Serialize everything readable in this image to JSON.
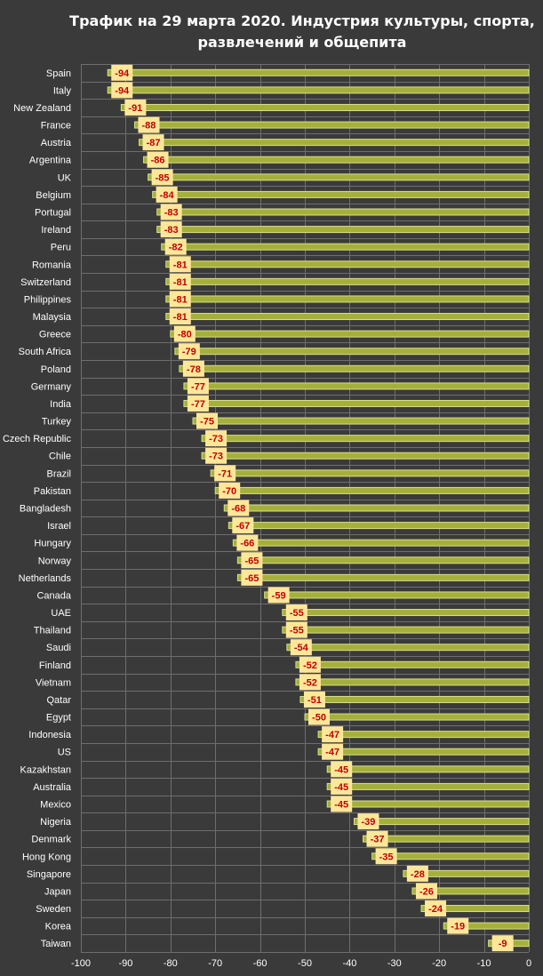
{
  "chart_data": {
    "type": "bar",
    "orientation": "horizontal",
    "title": "Трафик на 29 марта 2020. Индустрия культуры, спорта, развлечений и общепита",
    "title_lines": [
      "Трафик на 29 марта 2020. Индустрия культуры, спорта,",
      "развлечений и общепита"
    ],
    "categories": [
      "Spain",
      "Italy",
      "New Zealand",
      "France",
      "Austria",
      "Argentina",
      "UK",
      "Belgium",
      "Portugal",
      "Ireland",
      "Peru",
      "Romania",
      "Switzerland",
      "Philippines",
      "Malaysia",
      "Greece",
      "South Africa",
      "Poland",
      "Germany",
      "India",
      "Turkey",
      "Czech Republic",
      "Chile",
      "Brazil",
      "Pakistan",
      "Bangladesh",
      "Israel",
      "Hungary",
      "Norway",
      "Netherlands",
      "Canada",
      "UAE",
      "Thailand",
      "Saudi",
      "Finland",
      "Vietnam",
      "Qatar",
      "Egypt",
      "Indonesia",
      "US",
      "Kazakhstan",
      "Australia",
      "Mexico",
      "Nigeria",
      "Denmark",
      "Hong Kong",
      "Singapore",
      "Japan",
      "Sweden",
      "Korea",
      "Taiwan"
    ],
    "values": [
      -94,
      -94,
      -91,
      -88,
      -87,
      -86,
      -85,
      -84,
      -83,
      -83,
      -82,
      -81,
      -81,
      -81,
      -81,
      -80,
      -79,
      -78,
      -77,
      -77,
      -75,
      -73,
      -73,
      -71,
      -70,
      -68,
      -67,
      -66,
      -65,
      -65,
      -59,
      -55,
      -55,
      -54,
      -52,
      -52,
      -51,
      -50,
      -47,
      -47,
      -45,
      -45,
      -45,
      -39,
      -37,
      -35,
      -28,
      -26,
      -24,
      -19,
      -9
    ],
    "xlim": [
      -100,
      0
    ],
    "xticks": [
      -100,
      -90,
      -80,
      -70,
      -60,
      -50,
      -40,
      -30,
      -20,
      -10,
      0
    ],
    "xlabel": "",
    "ylabel": "",
    "grid": true,
    "legend": "none",
    "colors": {
      "background": "#3a3a3a",
      "grid": "#6e6e6e",
      "bar_fill": "#a4b03a",
      "bar_stroke": "#d8df8c",
      "label_box": "#ffe79a",
      "label_text": "#c00000",
      "text": "#ffffff"
    }
  }
}
